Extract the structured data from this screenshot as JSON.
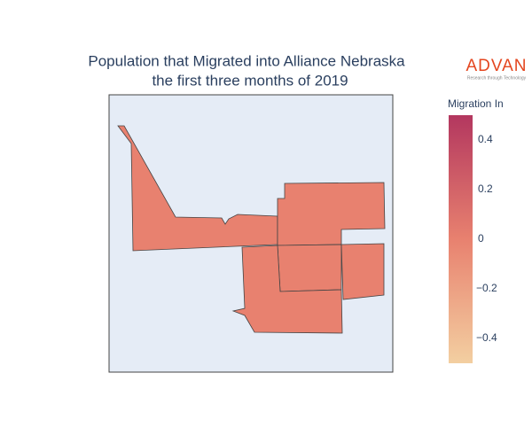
{
  "chart_data": {
    "type": "choropleth",
    "title_lines": [
      "Population that Migrated into Alliance Nebraska",
      "the first three months of 2019"
    ],
    "logo": {
      "name": "ADVAN",
      "tagline": "Research through Technology"
    },
    "colorbar_title": "Migration In",
    "values": [
      0,
      0,
      0,
      0,
      0
    ],
    "zlim": [
      -0.5,
      0.5
    ],
    "zticks": [
      0.4,
      0.2,
      0,
      {
        "value": -0.2,
        "label": "−0.2"
      },
      {
        "value": -0.4,
        "label": "−0.4"
      }
    ],
    "colorscale": [
      "#f3cfa1",
      "#e8816f",
      "#b3375f"
    ]
  }
}
